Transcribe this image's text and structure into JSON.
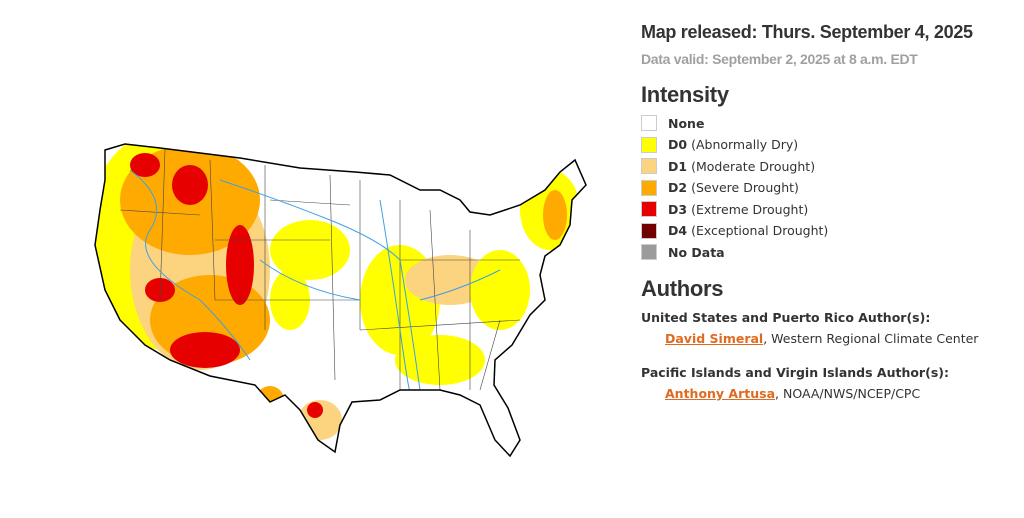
{
  "header": {
    "released": "Map released: Thurs. September 4, 2025",
    "valid": "Data valid: September 2, 2025 at 8 a.m. EDT"
  },
  "legend": {
    "title": "Intensity",
    "items": [
      {
        "code": "None",
        "label": "",
        "color": "#ffffff"
      },
      {
        "code": "D0",
        "label": "(Abnormally Dry)",
        "color": "#ffff00"
      },
      {
        "code": "D1",
        "label": "(Moderate Drought)",
        "color": "#fcd37f"
      },
      {
        "code": "D2",
        "label": "(Severe Drought)",
        "color": "#ffaa00"
      },
      {
        "code": "D3",
        "label": "(Extreme Drought)",
        "color": "#e60000"
      },
      {
        "code": "D4",
        "label": "(Exceptional Drought)",
        "color": "#730000"
      },
      {
        "code": "No Data",
        "label": "",
        "color": "#9b9b9b"
      }
    ]
  },
  "authors": {
    "title": "Authors",
    "groups": [
      {
        "heading": "United States and Puerto Rico Author(s):",
        "name": "David Simeral",
        "suffix": ", Western Regional Climate Center"
      },
      {
        "heading": "Pacific Islands and Virgin Islands Author(s):",
        "name": "Anthony Artusa",
        "suffix": ", NOAA/NWS/NCEP/CPC"
      }
    ]
  }
}
